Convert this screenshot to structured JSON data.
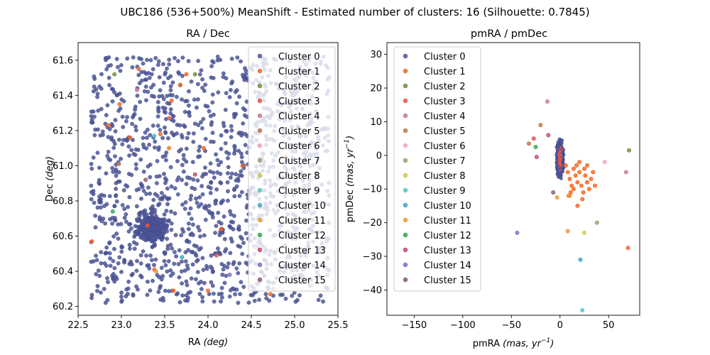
{
  "suptitle": "UBC186 (536+500%) MeanShift - Estimated number of clusters: 16 (Silhouette: 0.7845)",
  "legend_labels": [
    "Cluster 0",
    "Cluster 1",
    "Cluster 2",
    "Cluster 3",
    "Cluster 4",
    "Cluster 5",
    "Cluster 6",
    "Cluster 7",
    "Cluster 8",
    "Cluster 9",
    "Cluster 10",
    "Cluster 11",
    "Cluster 12",
    "Cluster 13",
    "Cluster 14",
    "Cluster 15"
  ],
  "cluster_colors": [
    "#4c5699",
    "#f26522",
    "#6f8f3a",
    "#e4564a",
    "#c9789a",
    "#b8764c",
    "#f1a7c0",
    "#9aa070",
    "#cfc94a",
    "#4fc9c3",
    "#3fa6c6",
    "#e69a3a",
    "#33a852",
    "#c24a6a",
    "#7a72c0",
    "#8a5a6e"
  ],
  "chart_data": [
    {
      "type": "scatter",
      "title": "RA / Dec",
      "xlabel": "RA ",
      "xlabel_unit": "(deg)",
      "ylabel": "Dec ",
      "ylabel_unit": "(deg)",
      "xlim": [
        22.5,
        25.5
      ],
      "ylim": [
        60.15,
        61.7
      ],
      "xticks": [
        "22.5",
        "23.0",
        "23.5",
        "24.0",
        "24.5",
        "25.0",
        "25.5"
      ],
      "yticks": [
        "60.2",
        "60.4",
        "60.6",
        "60.8",
        "61.0",
        "61.2",
        "61.4",
        "61.6"
      ],
      "legend": "upper right",
      "series": [
        {
          "name": "Cluster 0",
          "points": "dense field of ~1600 stars uniformly spread over RA 22.65-25.4, Dec 60.22-61.62 with overdensity near (23.35, 60.65)"
        },
        {
          "name": "Cluster 1",
          "points": [
            [
              22.66,
              60.57
            ],
            [
              22.85,
              61.23
            ],
            [
              22.98,
              61.35
            ],
            [
              23.1,
              61.16
            ],
            [
              23.2,
              61.55
            ],
            [
              23.38,
              60.41
            ],
            [
              23.45,
              61.18
            ],
            [
              23.55,
              61.1
            ],
            [
              23.58,
              61.37
            ],
            [
              23.6,
              60.29
            ],
            [
              23.68,
              61.46
            ],
            [
              23.75,
              61.52
            ],
            [
              23.95,
              61.1
            ],
            [
              24.0,
              60.29
            ],
            [
              24.15,
              60.64
            ],
            [
              24.4,
              61.0
            ],
            [
              24.72,
              60.27
            ],
            [
              24.9,
              61.05
            ],
            [
              25.02,
              60.34
            ],
            [
              25.12,
              60.76
            ]
          ]
        },
        {
          "name": "Cluster 2",
          "points": [
            [
              22.92,
              61.52
            ],
            [
              23.85,
              61.52
            ]
          ]
        },
        {
          "name": "Cluster 3",
          "points": [
            [
              23.3,
              60.66
            ],
            [
              23.55,
              61.27
            ],
            [
              24.1,
              60.49
            ]
          ]
        },
        {
          "name": "Cluster 4",
          "points": [
            [
              23.18,
              61.43
            ]
          ]
        },
        {
          "name": "Cluster 5",
          "points": [
            [
              22.97,
              61.01
            ],
            [
              24.75,
              60.3
            ]
          ]
        },
        {
          "name": "Cluster 6",
          "points": [
            [
              25.15,
              61.4
            ]
          ]
        },
        {
          "name": "Cluster 7",
          "points": [
            [
              25.05,
              60.85
            ],
            [
              24.8,
              60.52
            ]
          ]
        },
        {
          "name": "Cluster 8",
          "points": [
            [
              24.55,
              60.53
            ]
          ]
        },
        {
          "name": "Cluster 9",
          "points": [
            [
              23.38,
              61.17
            ]
          ]
        },
        {
          "name": "Cluster 10",
          "points": [
            [
              23.7,
              60.48
            ]
          ]
        },
        {
          "name": "Cluster 11",
          "points": [
            [
              23.55,
              61.1
            ],
            [
              23.4,
              60.4
            ],
            [
              25.2,
              60.32
            ]
          ]
        },
        {
          "name": "Cluster 12",
          "points": [
            [
              22.9,
              60.74
            ]
          ]
        },
        {
          "name": "Cluster 13",
          "points": [
            [
              23.85,
              60.95
            ]
          ]
        },
        {
          "name": "Cluster 14",
          "points": [
            [
              24.25,
              60.38
            ]
          ]
        },
        {
          "name": "Cluster 15",
          "points": [
            [
              23.28,
              60.92
            ]
          ]
        }
      ]
    },
    {
      "type": "scatter",
      "title": "pmRA / pmDec",
      "xlabel": "pmRA ",
      "xlabel_unit": "(mas, yr^{-1})",
      "ylabel": "pmDec ",
      "ylabel_unit": "(mas, yr^{-1})",
      "xlim": [
        -178,
        82
      ],
      "ylim": [
        -47.5,
        33.5
      ],
      "xticks": [
        "−150",
        "−100",
        "−50",
        "0",
        "50"
      ],
      "yticks": [
        "−40",
        "−30",
        "−20",
        "−10",
        "0",
        "10",
        "20",
        "30"
      ],
      "legend": "upper left",
      "series": [
        {
          "name": "Cluster 0",
          "points": "compact clump of ~1600 stars centred at (0, -1) spanning pmRA -8..8, pmDec -12..13"
        },
        {
          "name": "Cluster 1",
          "points": [
            [
              6,
              -3
            ],
            [
              8,
              -5
            ],
            [
              10,
              -7
            ],
            [
              12,
              -9
            ],
            [
              14,
              -10
            ],
            [
              16,
              -6
            ],
            [
              18,
              -8
            ],
            [
              20,
              -5
            ],
            [
              22,
              -9
            ],
            [
              24,
              -11
            ],
            [
              26,
              -6
            ],
            [
              28,
              -8
            ],
            [
              30,
              -10
            ],
            [
              32,
              -7
            ],
            [
              34,
              -5
            ],
            [
              25,
              -4
            ],
            [
              17,
              -3
            ],
            [
              20,
              -2
            ],
            [
              14,
              -4
            ],
            [
              11,
              -11
            ],
            [
              23,
              -13
            ],
            [
              18,
              -15
            ],
            [
              28,
              -3
            ],
            [
              36,
              -9
            ],
            [
              9,
              -12
            ],
            [
              70,
              -27.5
            ]
          ]
        },
        {
          "name": "Cluster 2",
          "points": [
            [
              71,
              1.5
            ]
          ]
        },
        {
          "name": "Cluster 3",
          "points": [
            [
              -27,
              5
            ]
          ]
        },
        {
          "name": "Cluster 4",
          "points": [
            [
              -13,
              16
            ],
            [
              68,
              -5
            ]
          ]
        },
        {
          "name": "Cluster 5",
          "points": [
            [
              -32,
              3.5
            ],
            [
              -20,
              9
            ]
          ]
        },
        {
          "name": "Cluster 6",
          "points": [
            [
              46,
              -2
            ]
          ]
        },
        {
          "name": "Cluster 7",
          "points": [
            [
              38,
              -20
            ]
          ]
        },
        {
          "name": "Cluster 8",
          "points": [
            [
              25,
              -23
            ]
          ]
        },
        {
          "name": "Cluster 9",
          "points": [
            [
              23,
              -46
            ]
          ]
        },
        {
          "name": "Cluster 10",
          "points": [
            [
              21,
              -31
            ]
          ]
        },
        {
          "name": "Cluster 11",
          "points": [
            [
              8,
              -22.5
            ],
            [
              -3,
              -12.5
            ],
            [
              10,
              -12
            ]
          ]
        },
        {
          "name": "Cluster 12",
          "points": [
            [
              -25,
              2.5
            ]
          ]
        },
        {
          "name": "Cluster 13",
          "points": [
            [
              -12,
              6
            ],
            [
              -24,
              -0.5
            ]
          ]
        },
        {
          "name": "Cluster 14",
          "points": [
            [
              -44,
              -23
            ]
          ]
        },
        {
          "name": "Cluster 15",
          "points": [
            [
              -7,
              -11
            ]
          ]
        }
      ]
    }
  ]
}
